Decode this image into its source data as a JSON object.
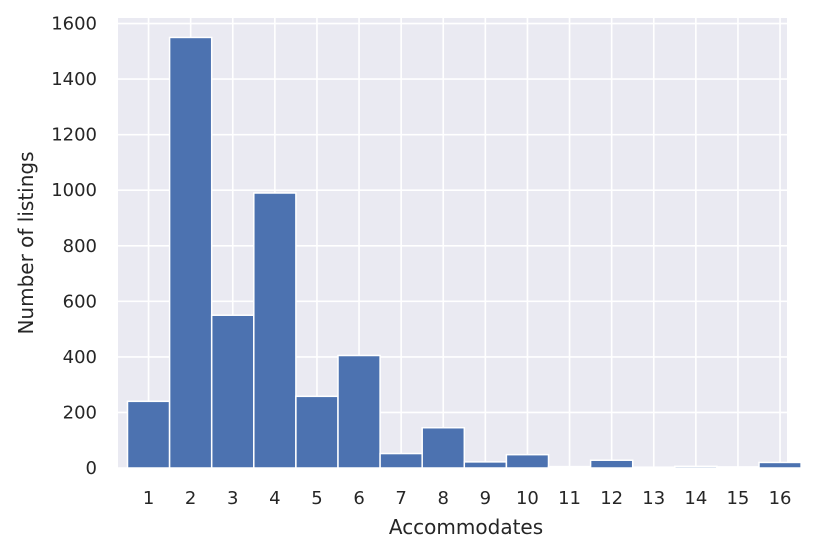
{
  "chart_data": {
    "type": "bar",
    "xlabel": "Accommodates",
    "ylabel": "Number of listings",
    "categories": [
      "1",
      "2",
      "3",
      "4",
      "5",
      "6",
      "7",
      "8",
      "9",
      "10",
      "11",
      "12",
      "13",
      "14",
      "15",
      "16"
    ],
    "values": [
      240,
      1550,
      550,
      990,
      258,
      405,
      52,
      145,
      22,
      48,
      5,
      28,
      3,
      6,
      4,
      20
    ],
    "ylim": [
      0,
      1620
    ],
    "yticks": [
      0,
      200,
      400,
      600,
      800,
      1000,
      1200,
      1400,
      1600
    ],
    "grid": true,
    "bar_color": "#4c72b0",
    "background_color": "#eaeaf2",
    "grid_color": "#ffffff"
  }
}
